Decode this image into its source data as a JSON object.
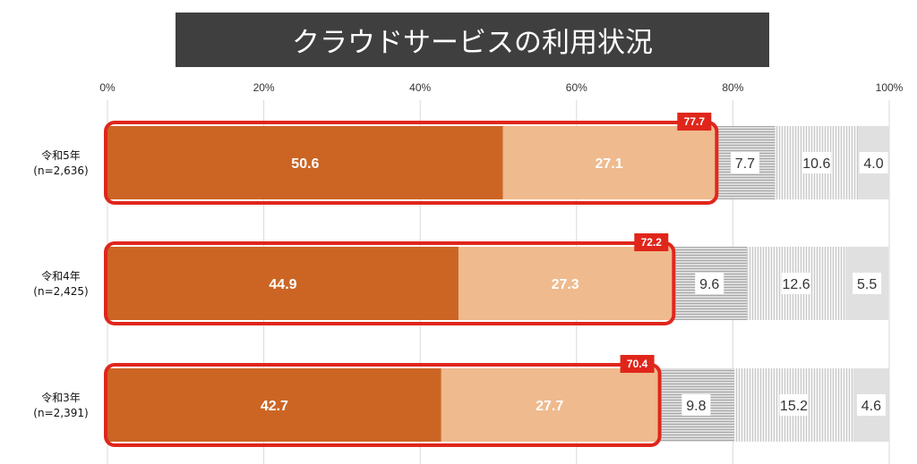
{
  "title": "クラウドサービスの利用状況",
  "chart_data": {
    "type": "bar",
    "orientation": "horizontal",
    "stacked": true,
    "percent_axis": true,
    "x_ticks": [
      "0%",
      "20%",
      "40%",
      "60%",
      "80%",
      "100%"
    ],
    "xlim": [
      0,
      100
    ],
    "grid": true,
    "categories": [
      [
        "令和5年",
        "(n=2,636)"
      ],
      [
        "令和4年",
        "(n=2,425)"
      ],
      [
        "令和3年",
        "(n=2,391)"
      ]
    ],
    "series": [
      {
        "values": [
          50.6,
          44.9,
          42.7
        ],
        "color": "#cc6524",
        "label_color": "#ffffff"
      },
      {
        "values": [
          27.1,
          27.3,
          27.7
        ],
        "color": "#efba8d",
        "label_color": "#ffffff"
      },
      {
        "values": [
          7.7,
          9.6,
          9.8
        ],
        "color": "#bfbfbf",
        "pattern": "horizontal-lines",
        "label_color": "#333333"
      },
      {
        "values": [
          10.6,
          12.6,
          15.2
        ],
        "color": "#e3e3e3",
        "pattern": "vertical-lines",
        "label_color": "#333333"
      },
      {
        "values": [
          4.0,
          5.5,
          4.6
        ],
        "color": "#e0e0e0",
        "label_color": "#333333"
      }
    ],
    "totals": {
      "values": [
        "77.7",
        "72.2",
        "70.4"
      ],
      "covers_series": [
        0,
        1
      ],
      "outline_color": "#e0261b",
      "badge_color": "#e0261b"
    }
  }
}
